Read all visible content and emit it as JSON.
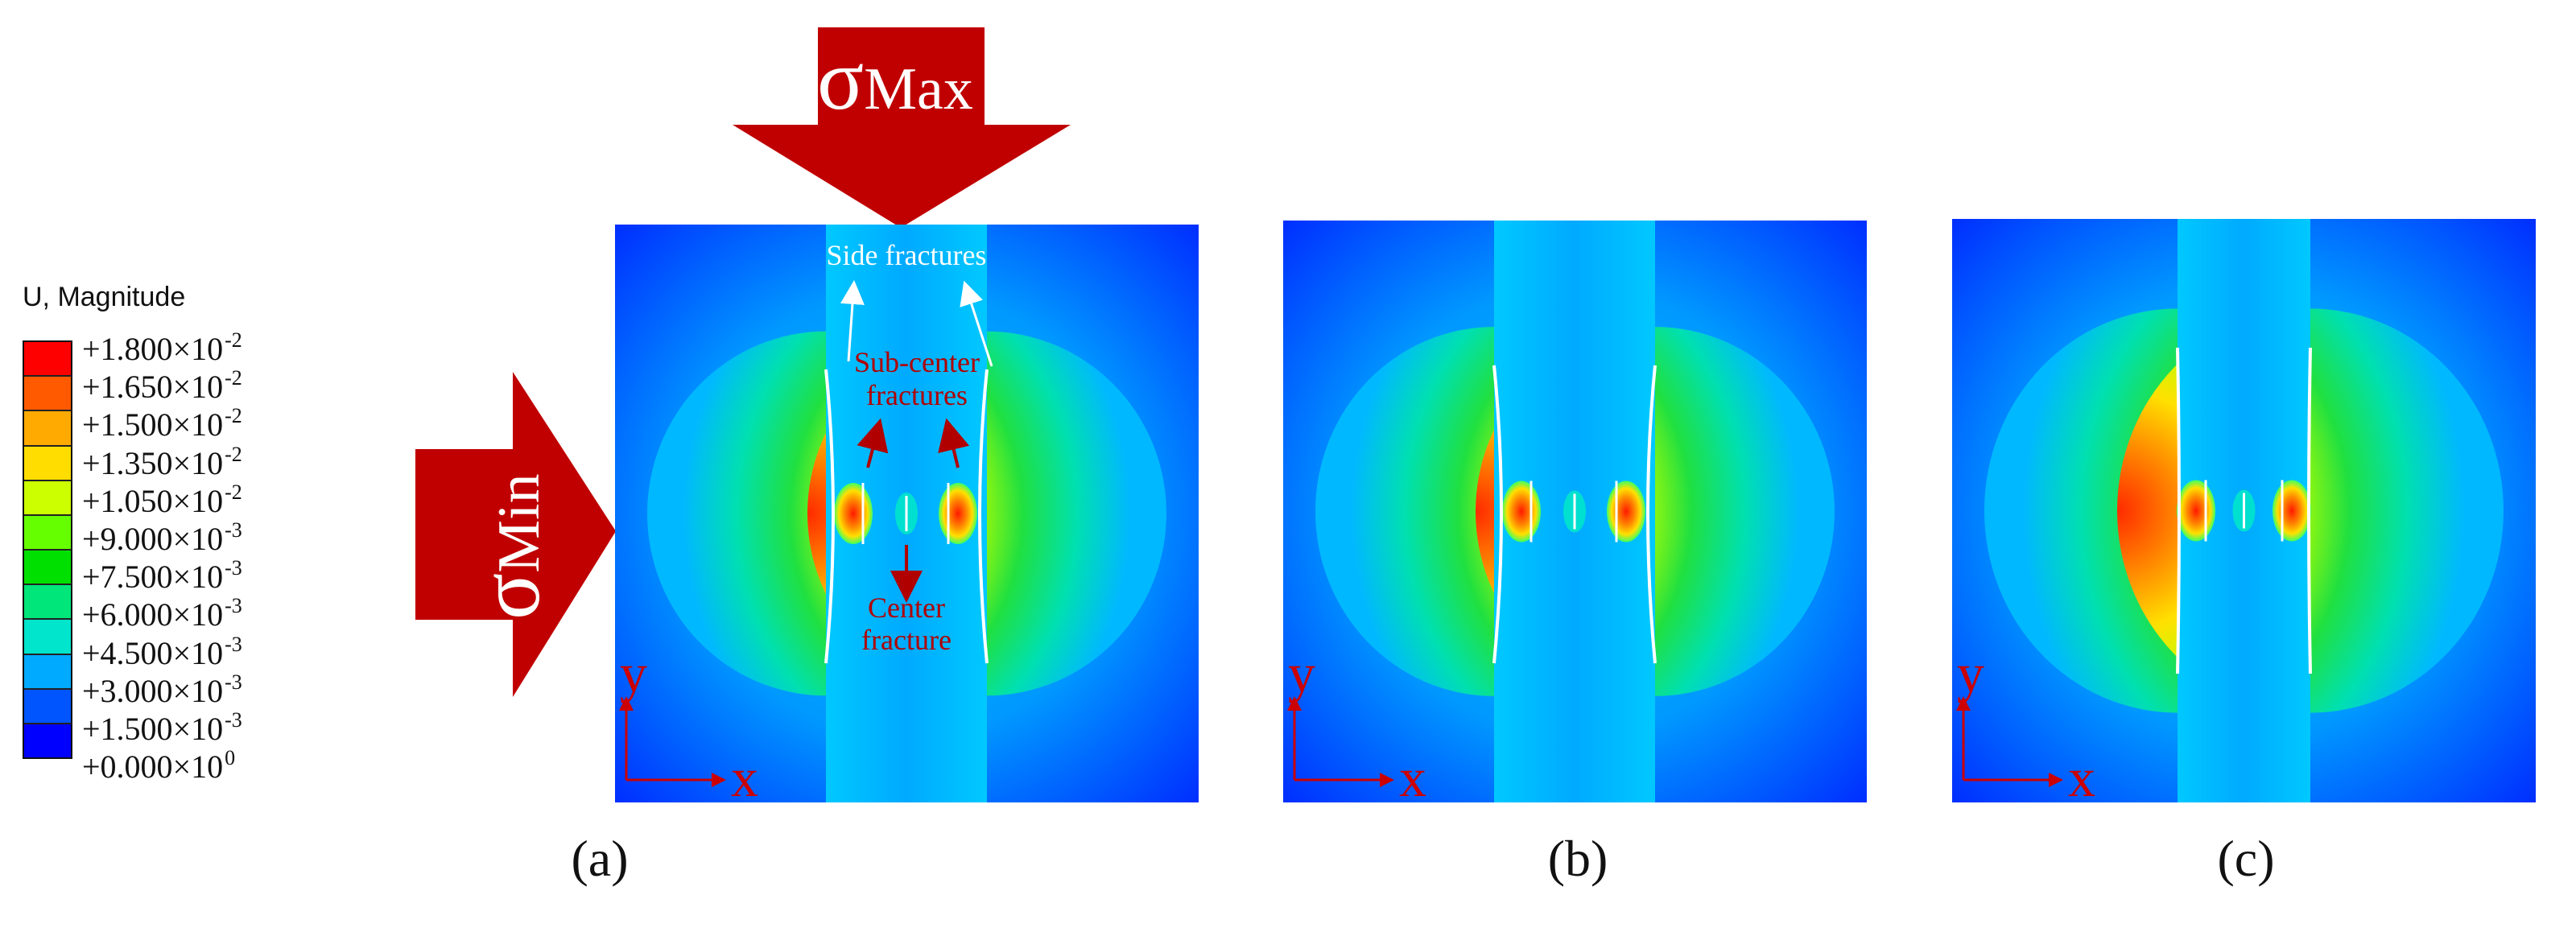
{
  "legend": {
    "title": "U, Magnitude",
    "labels": [
      {
        "mantissa": "+1.800",
        "exponent": "-2"
      },
      {
        "mantissa": "+1.650",
        "exponent": "-2"
      },
      {
        "mantissa": "+1.500",
        "exponent": "-2"
      },
      {
        "mantissa": "+1.350",
        "exponent": "-2"
      },
      {
        "mantissa": "+1.050",
        "exponent": "-2"
      },
      {
        "mantissa": "+9.000",
        "exponent": "-3"
      },
      {
        "mantissa": "+7.500",
        "exponent": "-3"
      },
      {
        "mantissa": "+6.000",
        "exponent": "-3"
      },
      {
        "mantissa": "+4.500",
        "exponent": "-3"
      },
      {
        "mantissa": "+3.000",
        "exponent": "-3"
      },
      {
        "mantissa": "+1.500",
        "exponent": "-3"
      },
      {
        "mantissa": "+0.000",
        "exponent": "0"
      }
    ],
    "colors": [
      "#ff0000",
      "#ff5a00",
      "#ffaa00",
      "#ffdd00",
      "#ccff00",
      "#66ff00",
      "#00e000",
      "#00e67a",
      "#00e5cc",
      "#00aaff",
      "#0055ff",
      "#0000ff"
    ]
  },
  "stress": {
    "max": {
      "symbol": "σ",
      "subscript": "Max"
    },
    "min": {
      "symbol": "σ",
      "subscript": "Min"
    },
    "arrow_color": "#c00000"
  },
  "annotations": {
    "side_fractures": "Side fractures",
    "sub_center_line1": "Sub-center",
    "sub_center_line2": "fractures",
    "center_line1": "Center",
    "center_line2": "fracture"
  },
  "axes": {
    "x": "x",
    "y": "y"
  },
  "panels": [
    {
      "id": "a",
      "caption": "(a)"
    },
    {
      "id": "b",
      "caption": "(b)"
    },
    {
      "id": "c",
      "caption": "(c)"
    }
  ]
}
